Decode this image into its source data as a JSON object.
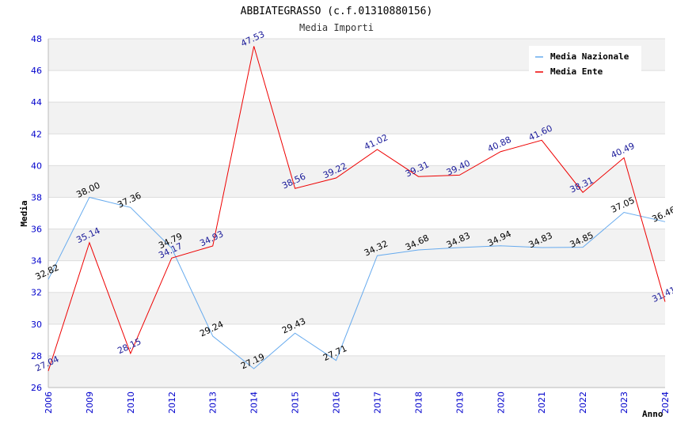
{
  "chart_data": {
    "type": "line",
    "title": "ABBIATEGRASSO (c.f.01310880156)",
    "subtitle": "Media Importi",
    "xlabel": "Anno",
    "ylabel": "Media",
    "ylim": [
      26,
      48
    ],
    "yticks": [
      "26",
      "28",
      "30",
      "32",
      "34",
      "36",
      "38",
      "40",
      "42",
      "44",
      "46",
      "48"
    ],
    "categories": [
      "2006",
      "2009",
      "2010",
      "2012",
      "2013",
      "2014",
      "2015",
      "2016",
      "2017",
      "2018",
      "2019",
      "2020",
      "2021",
      "2022",
      "2023",
      "2024"
    ],
    "grid": true,
    "legend_position": "top-right",
    "series": [
      {
        "name": "Media Nazionale",
        "color": "#66aaee",
        "values": [
          32.82,
          38.0,
          37.36,
          34.79,
          29.24,
          27.19,
          29.43,
          27.71,
          34.32,
          34.68,
          34.83,
          34.94,
          34.83,
          34.85,
          37.05,
          36.46
        ],
        "labels": [
          "32.82",
          "38.00",
          "37.36",
          "34.79",
          "29.24",
          "27.19",
          "29.43",
          "27.71",
          "34.32",
          "34.68",
          "34.83",
          "34.94",
          "34.83",
          "34.85",
          "37.05",
          "36.46"
        ]
      },
      {
        "name": "Media Ente",
        "color": "#ee0000",
        "values": [
          27.04,
          35.14,
          28.15,
          34.17,
          34.93,
          47.53,
          38.56,
          39.22,
          41.02,
          39.31,
          39.4,
          40.88,
          41.6,
          38.31,
          40.49,
          31.41
        ],
        "labels": [
          "27.04",
          "35.14",
          "28.15",
          "34.17",
          "34.93",
          "47.53",
          "38.56",
          "39.22",
          "41.02",
          "39.31",
          "39.40",
          "40.88",
          "41.60",
          "38.31",
          "40.49",
          "31.41"
        ]
      }
    ]
  }
}
